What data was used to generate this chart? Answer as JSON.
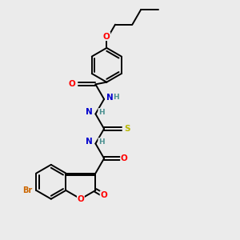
{
  "background_color": "#ebebeb",
  "bond_color": "#000000",
  "atom_colors": {
    "O": "#ff0000",
    "N": "#0000cd",
    "S": "#b8b800",
    "Br": "#cc6600",
    "C": "#000000",
    "H": "#4a9090"
  },
  "fig_w": 3.0,
  "fig_h": 3.0,
  "dpi": 100
}
